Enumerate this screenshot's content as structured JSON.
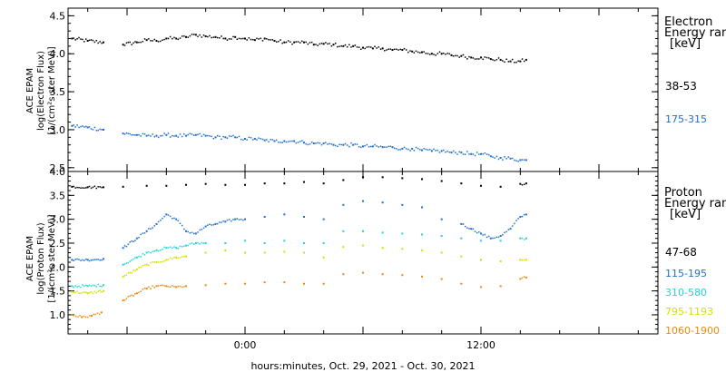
{
  "chart_data": [
    {
      "type": "scatter",
      "ylabel": [
        "ACE EPAM",
        "log(Electron Flux)",
        "[1/(cm²s ster MeV)]"
      ],
      "ylim": [
        2.45,
        4.6
      ],
      "yticks": [
        2.5,
        3.0,
        3.5,
        4.0,
        4.5
      ],
      "ytick_labels": [
        "2.5",
        "3.0",
        "3.5",
        "4.0",
        "4.5"
      ],
      "xlim": [
        -9,
        21
      ],
      "legend": {
        "title": [
          "Electron",
          "Energy range",
          "[keV]"
        ],
        "entries": [
          {
            "label": "38-53",
            "color": "#000000"
          },
          {
            "label": "175-315",
            "color": "#1e6fd0"
          }
        ]
      },
      "series": [
        {
          "color": "#000000",
          "points": [
            [
              -8.8,
              4.2
            ],
            [
              -8.0,
              4.17
            ],
            [
              -7.2,
              4.15
            ],
            [
              -6.2,
              4.12
            ],
            [
              -5.5,
              4.15
            ],
            [
              -5.0,
              4.18
            ],
            [
              -4.5,
              4.17
            ],
            [
              -4.0,
              4.2
            ],
            [
              -3.5,
              4.2
            ],
            [
              -3.0,
              4.22
            ],
            [
              -2.5,
              4.25
            ],
            [
              -2.0,
              4.23
            ],
            [
              -1.5,
              4.22
            ],
            [
              -1.0,
              4.2
            ],
            [
              -0.5,
              4.22
            ],
            [
              0.0,
              4.2
            ],
            [
              0.5,
              4.18
            ],
            [
              1.0,
              4.2
            ],
            [
              1.5,
              4.17
            ],
            [
              2.0,
              4.15
            ],
            [
              2.5,
              4.15
            ],
            [
              3.0,
              4.15
            ],
            [
              3.5,
              4.12
            ],
            [
              4.0,
              4.13
            ],
            [
              4.5,
              4.12
            ],
            [
              5.0,
              4.1
            ],
            [
              5.5,
              4.1
            ],
            [
              6.0,
              4.08
            ],
            [
              6.5,
              4.07
            ],
            [
              7.0,
              4.07
            ],
            [
              7.5,
              4.05
            ],
            [
              8.0,
              4.05
            ],
            [
              8.5,
              4.03
            ],
            [
              9.0,
              4.02
            ],
            [
              9.5,
              4.0
            ],
            [
              10.0,
              4.0
            ],
            [
              10.5,
              3.98
            ],
            [
              11.0,
              3.97
            ],
            [
              11.5,
              3.95
            ],
            [
              12.0,
              3.95
            ],
            [
              12.5,
              3.93
            ],
            [
              13.0,
              3.92
            ],
            [
              13.5,
              3.9
            ],
            [
              14.0,
              3.9
            ],
            [
              14.3,
              3.92
            ]
          ]
        },
        {
          "color": "#1e6fd0",
          "points": [
            [
              -8.8,
              3.05
            ],
            [
              -8.0,
              3.03
            ],
            [
              -7.2,
              3.0
            ],
            [
              -6.2,
              2.95
            ],
            [
              -5.5,
              2.93
            ],
            [
              -5.0,
              2.92
            ],
            [
              -4.5,
              2.92
            ],
            [
              -4.0,
              2.93
            ],
            [
              -3.5,
              2.92
            ],
            [
              -3.0,
              2.92
            ],
            [
              -2.5,
              2.93
            ],
            [
              -2.0,
              2.92
            ],
            [
              -1.5,
              2.9
            ],
            [
              -1.0,
              2.9
            ],
            [
              -0.5,
              2.9
            ],
            [
              0.0,
              2.88
            ],
            [
              0.5,
              2.88
            ],
            [
              1.0,
              2.86
            ],
            [
              1.5,
              2.85
            ],
            [
              2.0,
              2.85
            ],
            [
              2.5,
              2.85
            ],
            [
              3.0,
              2.83
            ],
            [
              3.5,
              2.82
            ],
            [
              4.0,
              2.82
            ],
            [
              4.5,
              2.8
            ],
            [
              5.0,
              2.8
            ],
            [
              5.5,
              2.8
            ],
            [
              6.0,
              2.78
            ],
            [
              6.5,
              2.78
            ],
            [
              7.0,
              2.77
            ],
            [
              7.5,
              2.77
            ],
            [
              8.0,
              2.75
            ],
            [
              8.5,
              2.75
            ],
            [
              9.0,
              2.73
            ],
            [
              9.5,
              2.72
            ],
            [
              10.0,
              2.72
            ],
            [
              10.5,
              2.7
            ],
            [
              11.0,
              2.7
            ],
            [
              11.5,
              2.68
            ],
            [
              12.0,
              2.68
            ],
            [
              12.5,
              2.65
            ],
            [
              13.0,
              2.63
            ],
            [
              13.5,
              2.62
            ],
            [
              14.0,
              2.6
            ],
            [
              14.3,
              2.6
            ]
          ]
        }
      ]
    },
    {
      "type": "scatter",
      "ylabel": [
        "ACE EPAM",
        "log(Proton Flux)",
        "[1/(cm²s ster MeV)]"
      ],
      "ylim": [
        0.6,
        4.0
      ],
      "yticks": [
        1.0,
        1.5,
        2.0,
        2.5,
        3.0,
        3.5,
        4.0
      ],
      "ytick_labels": [
        "1.0",
        "1.5",
        "2.0",
        "2.5",
        "3.0",
        "3.5",
        "4.0"
      ],
      "xlim": [
        -9,
        21
      ],
      "xticks": [
        0,
        12
      ],
      "xtick_labels": [
        "0:00",
        "12:00"
      ],
      "xlabel": "hours:minutes, Oct. 29, 2021 - Oct. 30, 2021",
      "legend": {
        "title": [
          "Proton",
          "Energy range",
          "[keV]"
        ],
        "entries": [
          {
            "label": "47-68",
            "color": "#000000"
          },
          {
            "label": "115-195",
            "color": "#1e6fd0"
          },
          {
            "label": "310-580",
            "color": "#22d3d3"
          },
          {
            "label": "795-1193",
            "color": "#d4e000"
          },
          {
            "label": "1060-1900",
            "color": "#e88a10"
          }
        ]
      },
      "series": [
        {
          "color": "#000000",
          "points": [
            [
              -8.8,
              3.68
            ],
            [
              -8.0,
              3.67
            ],
            [
              -7.2,
              3.67
            ],
            [
              -6.2,
              3.68
            ],
            [
              -5.0,
              3.7
            ],
            [
              -4.0,
              3.7
            ],
            [
              -3.0,
              3.72
            ],
            [
              -2.0,
              3.74
            ],
            [
              -1.0,
              3.72
            ],
            [
              0.0,
              3.72
            ],
            [
              1.0,
              3.75
            ],
            [
              2.0,
              3.75
            ],
            [
              3.0,
              3.78
            ],
            [
              4.0,
              3.75
            ],
            [
              5.0,
              3.82
            ],
            [
              6.0,
              3.88
            ],
            [
              7.0,
              3.88
            ],
            [
              8.0,
              3.86
            ],
            [
              9.0,
              3.84
            ],
            [
              10.0,
              3.8
            ],
            [
              11.0,
              3.75
            ],
            [
              12.0,
              3.7
            ],
            [
              13.0,
              3.68
            ],
            [
              14.0,
              3.74
            ],
            [
              14.3,
              3.75
            ]
          ]
        },
        {
          "color": "#1e6fd0",
          "points": [
            [
              -8.8,
              2.15
            ],
            [
              -8.0,
              2.15
            ],
            [
              -7.2,
              2.17
            ],
            [
              -6.2,
              2.4
            ],
            [
              -5.5,
              2.6
            ],
            [
              -5.0,
              2.75
            ],
            [
              -4.5,
              2.9
            ],
            [
              -4.0,
              3.1
            ],
            [
              -3.5,
              3.0
            ],
            [
              -3.0,
              2.75
            ],
            [
              -2.5,
              2.7
            ],
            [
              -2.0,
              2.85
            ],
            [
              -1.5,
              2.9
            ],
            [
              -1.0,
              2.95
            ],
            [
              -0.5,
              3.0
            ],
            [
              0.0,
              3.0
            ],
            [
              1.0,
              3.05
            ],
            [
              2.0,
              3.1
            ],
            [
              3.0,
              3.05
            ],
            [
              4.0,
              3.0
            ],
            [
              5.0,
              3.3
            ],
            [
              6.0,
              3.38
            ],
            [
              7.0,
              3.35
            ],
            [
              8.0,
              3.3
            ],
            [
              9.0,
              3.25
            ],
            [
              10.0,
              3.0
            ],
            [
              11.0,
              2.9
            ],
            [
              11.5,
              2.8
            ],
            [
              12.0,
              2.7
            ],
            [
              12.5,
              2.6
            ],
            [
              13.0,
              2.65
            ],
            [
              13.5,
              2.8
            ],
            [
              14.0,
              3.05
            ],
            [
              14.3,
              3.1
            ]
          ]
        },
        {
          "color": "#22d3d3",
          "points": [
            [
              -8.8,
              1.6
            ],
            [
              -8.0,
              1.6
            ],
            [
              -7.2,
              1.62
            ],
            [
              -6.2,
              2.05
            ],
            [
              -5.5,
              2.2
            ],
            [
              -5.0,
              2.3
            ],
            [
              -4.5,
              2.35
            ],
            [
              -4.0,
              2.4
            ],
            [
              -3.5,
              2.4
            ],
            [
              -3.0,
              2.45
            ],
            [
              -2.5,
              2.5
            ],
            [
              -2.0,
              2.5
            ],
            [
              -1.0,
              2.5
            ],
            [
              0.0,
              2.55
            ],
            [
              1.0,
              2.5
            ],
            [
              2.0,
              2.55
            ],
            [
              3.0,
              2.5
            ],
            [
              4.0,
              2.5
            ],
            [
              5.0,
              2.75
            ],
            [
              6.0,
              2.75
            ],
            [
              7.0,
              2.72
            ],
            [
              8.0,
              2.7
            ],
            [
              9.0,
              2.68
            ],
            [
              10.0,
              2.65
            ],
            [
              11.0,
              2.6
            ],
            [
              12.0,
              2.55
            ],
            [
              13.0,
              2.55
            ],
            [
              14.0,
              2.6
            ],
            [
              14.3,
              2.6
            ]
          ]
        },
        {
          "color": "#d4e000",
          "points": [
            [
              -8.8,
              1.48
            ],
            [
              -8.0,
              1.45
            ],
            [
              -7.2,
              1.5
            ],
            [
              -6.2,
              1.8
            ],
            [
              -5.5,
              1.95
            ],
            [
              -5.0,
              2.05
            ],
            [
              -4.5,
              2.1
            ],
            [
              -4.0,
              2.15
            ],
            [
              -3.5,
              2.2
            ],
            [
              -3.0,
              2.22
            ],
            [
              -2.0,
              2.3
            ],
            [
              -1.0,
              2.35
            ],
            [
              0.0,
              2.3
            ],
            [
              1.0,
              2.3
            ],
            [
              2.0,
              2.32
            ],
            [
              3.0,
              2.3
            ],
            [
              4.0,
              2.2
            ],
            [
              5.0,
              2.42
            ],
            [
              6.0,
              2.45
            ],
            [
              7.0,
              2.4
            ],
            [
              8.0,
              2.38
            ],
            [
              9.0,
              2.35
            ],
            [
              10.0,
              2.3
            ],
            [
              11.0,
              2.22
            ],
            [
              12.0,
              2.15
            ],
            [
              13.0,
              2.12
            ],
            [
              14.0,
              2.15
            ],
            [
              14.3,
              2.15
            ]
          ]
        },
        {
          "color": "#e88a10",
          "points": [
            [
              -8.8,
              1.0
            ],
            [
              -8.3,
              0.95
            ],
            [
              -7.8,
              0.98
            ],
            [
              -7.3,
              1.05
            ],
            [
              -6.2,
              1.3
            ],
            [
              -5.5,
              1.45
            ],
            [
              -5.0,
              1.55
            ],
            [
              -4.5,
              1.6
            ],
            [
              -4.0,
              1.6
            ],
            [
              -3.5,
              1.58
            ],
            [
              -3.0,
              1.6
            ],
            [
              -2.0,
              1.62
            ],
            [
              -1.0,
              1.65
            ],
            [
              0.0,
              1.65
            ],
            [
              1.0,
              1.68
            ],
            [
              2.0,
              1.68
            ],
            [
              3.0,
              1.65
            ],
            [
              4.0,
              1.65
            ],
            [
              5.0,
              1.85
            ],
            [
              6.0,
              1.88
            ],
            [
              7.0,
              1.85
            ],
            [
              8.0,
              1.83
            ],
            [
              9.0,
              1.8
            ],
            [
              10.0,
              1.75
            ],
            [
              11.0,
              1.65
            ],
            [
              12.0,
              1.58
            ],
            [
              13.0,
              1.6
            ],
            [
              14.0,
              1.75
            ],
            [
              14.3,
              1.78
            ]
          ]
        }
      ]
    }
  ]
}
